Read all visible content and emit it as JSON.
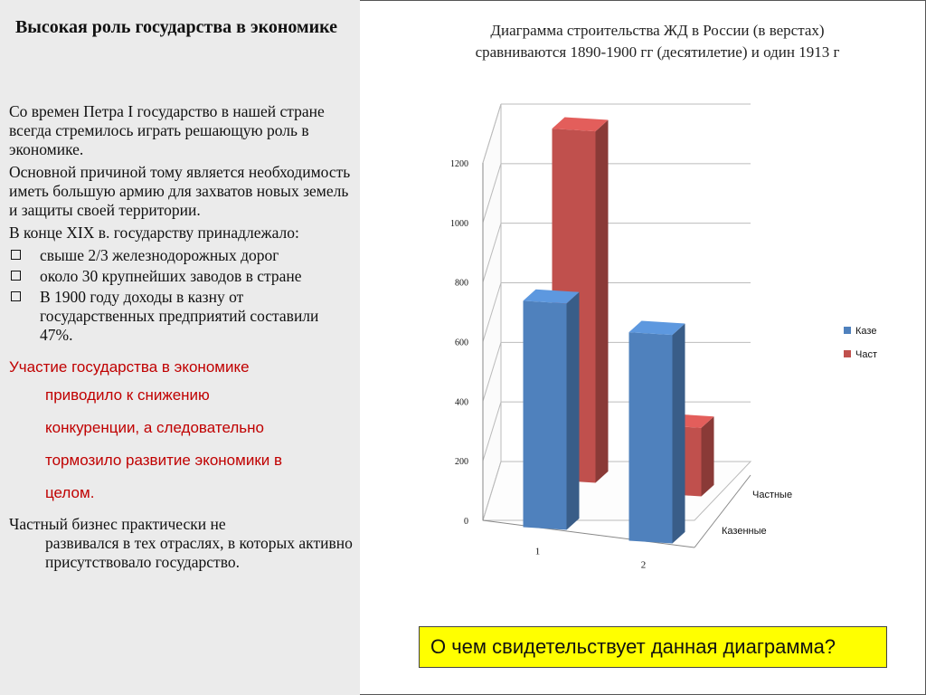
{
  "left": {
    "title": "Высокая роль государства в экономике",
    "para1": "Со времен Петра I государство в нашей стране всегда стремилось играть решающую роль в экономике.",
    "para2": "Основной причиной тому является необходимость  иметь большую армию для захватов новых земель и защиты своей территории.",
    "para3": "В конце  XIX в. государству принадлежало:",
    "bullets": [
      "свыше 2/3 железнодорожных дорог",
      "около 30 крупнейших заводов в стране",
      "В 1900 году доходы в казну от государственных предприятий составили 47%."
    ],
    "red_lines": [
      "Участие государства в экономике",
      "приводило к снижению",
      "конкуренции, а следовательно",
      "тормозило развитие экономики в",
      "целом."
    ],
    "last_first": "Частный бизнес практически не",
    "last_rest": "развивался в тех отраслях, в которых активно присутствовало государство."
  },
  "chart_title_line1": "Диаграмма строительства ЖД в России  (в верстах)",
  "chart_title_line2": "сравниваются 1890-1900 гг (десятилетие) и один 1913 г",
  "question": "О чем свидетельствует данная диаграмма?",
  "chart_data": {
    "type": "bar",
    "categories": [
      "1",
      "2"
    ],
    "series": [
      {
        "name": "Казенные",
        "values": [
          760,
          700
        ],
        "color": "#4f81bd"
      },
      {
        "name": "Частные",
        "values": [
          1180,
          230
        ],
        "color": "#c0504d"
      }
    ],
    "ylim": [
      0,
      1200
    ],
    "yticks": [
      "0",
      "200",
      "400",
      "600",
      "800",
      "1000",
      "1200"
    ],
    "depth_labels": [
      "Частные",
      "Казенные"
    ],
    "grid": true,
    "legend": "right"
  }
}
